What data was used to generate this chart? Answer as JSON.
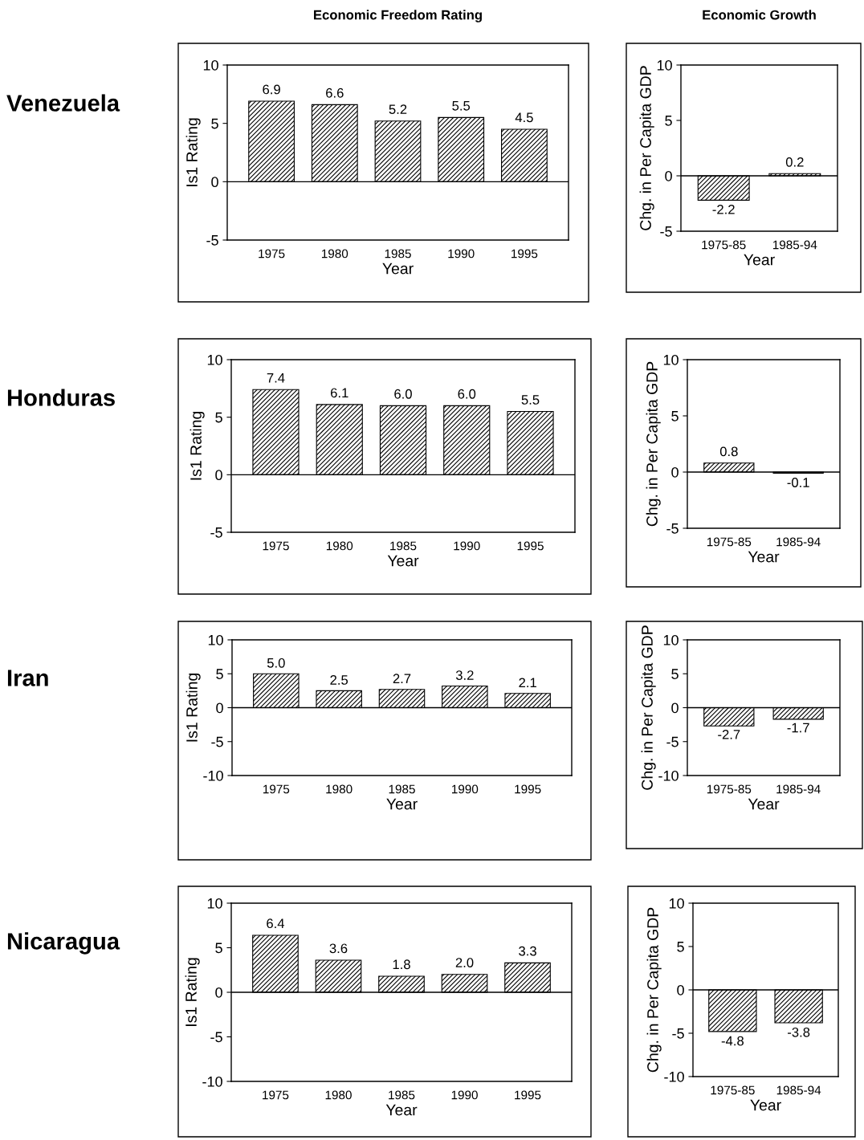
{
  "chart_data": [
    {
      "type": "bar",
      "title": "Economic Freedom Rating",
      "annotations": [
        "Venezuela"
      ],
      "xlabel": "Year",
      "ylabel": "Is1 Rating",
      "categories": [
        "1975",
        "1980",
        "1985",
        "1990",
        "1995"
      ],
      "values": [
        6.9,
        6.6,
        5.2,
        5.5,
        4.5
      ],
      "value_labels": [
        "6.9",
        "6.6",
        "5.2",
        "5.5",
        "4.5"
      ],
      "ylim": [
        -5,
        10
      ],
      "yticks": [
        -5,
        0,
        5,
        10
      ],
      "ref_lines": [
        {
          "axis": "y",
          "value": 0
        }
      ],
      "grid": false,
      "legend": false
    },
    {
      "type": "bar",
      "title": "Economic Growth",
      "xlabel": "Year",
      "ylabel": "Chg. in Per Capita GDP",
      "categories": [
        "1975-85",
        "1985-94"
      ],
      "values": [
        -2.2,
        0.2
      ],
      "value_labels": [
        "-2.2",
        "0.2"
      ],
      "ylim": [
        -5,
        10
      ],
      "yticks": [
        -5,
        0,
        5,
        10
      ],
      "ref_lines": [
        {
          "axis": "y",
          "value": 0
        }
      ],
      "grid": false,
      "legend": false
    },
    {
      "type": "bar",
      "annotations": [
        "Honduras"
      ],
      "xlabel": "Year",
      "ylabel": "Is1 Rating",
      "categories": [
        "1975",
        "1980",
        "1985",
        "1990",
        "1995"
      ],
      "values": [
        7.4,
        6.1,
        6.0,
        6.0,
        5.5
      ],
      "value_labels": [
        "7.4",
        "6.1",
        "6.0",
        "6.0",
        "5.5"
      ],
      "ylim": [
        -5,
        10
      ],
      "yticks": [
        -5,
        0,
        5,
        10
      ],
      "ref_lines": [
        {
          "axis": "y",
          "value": 0
        }
      ],
      "grid": false,
      "legend": false
    },
    {
      "type": "bar",
      "xlabel": "Year",
      "ylabel": "Chg. in Per Capita GDP",
      "categories": [
        "1975-85",
        "1985-94"
      ],
      "values": [
        0.8,
        -0.1
      ],
      "value_labels": [
        "0.8",
        "-0.1"
      ],
      "ylim": [
        -5,
        10
      ],
      "yticks": [
        -5,
        0,
        5,
        10
      ],
      "ref_lines": [
        {
          "axis": "y",
          "value": 0
        }
      ],
      "grid": false,
      "legend": false
    },
    {
      "type": "bar",
      "annotations": [
        "Iran"
      ],
      "xlabel": "Year",
      "ylabel": "Is1 Rating",
      "categories": [
        "1975",
        "1980",
        "1985",
        "1990",
        "1995"
      ],
      "values": [
        5.0,
        2.5,
        2.7,
        3.2,
        2.1
      ],
      "value_labels": [
        "5.0",
        "2.5",
        "2.7",
        "3.2",
        "2.1"
      ],
      "ylim": [
        -10,
        10
      ],
      "yticks": [
        -10,
        -5,
        0,
        5,
        10
      ],
      "ref_lines": [
        {
          "axis": "y",
          "value": 0
        }
      ],
      "grid": false,
      "legend": false
    },
    {
      "type": "bar",
      "xlabel": "Year",
      "ylabel": "Chg. in Per Capita GDP",
      "categories": [
        "1975-85",
        "1985-94"
      ],
      "values": [
        -2.7,
        -1.7
      ],
      "value_labels": [
        "-2.7",
        "-1.7"
      ],
      "ylim": [
        -10,
        10
      ],
      "yticks": [
        -10,
        -5,
        0,
        5,
        10
      ],
      "ref_lines": [
        {
          "axis": "y",
          "value": 0
        }
      ],
      "grid": false,
      "legend": false
    },
    {
      "type": "bar",
      "annotations": [
        "Nicaragua"
      ],
      "xlabel": "Year",
      "ylabel": "Is1 Rating",
      "categories": [
        "1975",
        "1980",
        "1985",
        "1990",
        "1995"
      ],
      "values": [
        6.4,
        3.6,
        1.8,
        2.0,
        3.3
      ],
      "value_labels": [
        "6.4",
        "3.6",
        "1.8",
        "2.0",
        "3.3"
      ],
      "ylim": [
        -10,
        10
      ],
      "yticks": [
        -10,
        -5,
        0,
        5,
        10
      ],
      "ref_lines": [
        {
          "axis": "y",
          "value": 0
        }
      ],
      "grid": false,
      "legend": false
    },
    {
      "type": "bar",
      "xlabel": "Year",
      "ylabel": "Chg. in Per Capita GDP",
      "categories": [
        "1975-85",
        "1985-94"
      ],
      "values": [
        -4.8,
        -3.8
      ],
      "value_labels": [
        "-4.8",
        "-3.8"
      ],
      "ylim": [
        -10,
        10
      ],
      "yticks": [
        -10,
        -5,
        0,
        5,
        10
      ],
      "ref_lines": [
        {
          "axis": "y",
          "value": 0
        }
      ],
      "grid": false,
      "legend": false
    }
  ]
}
